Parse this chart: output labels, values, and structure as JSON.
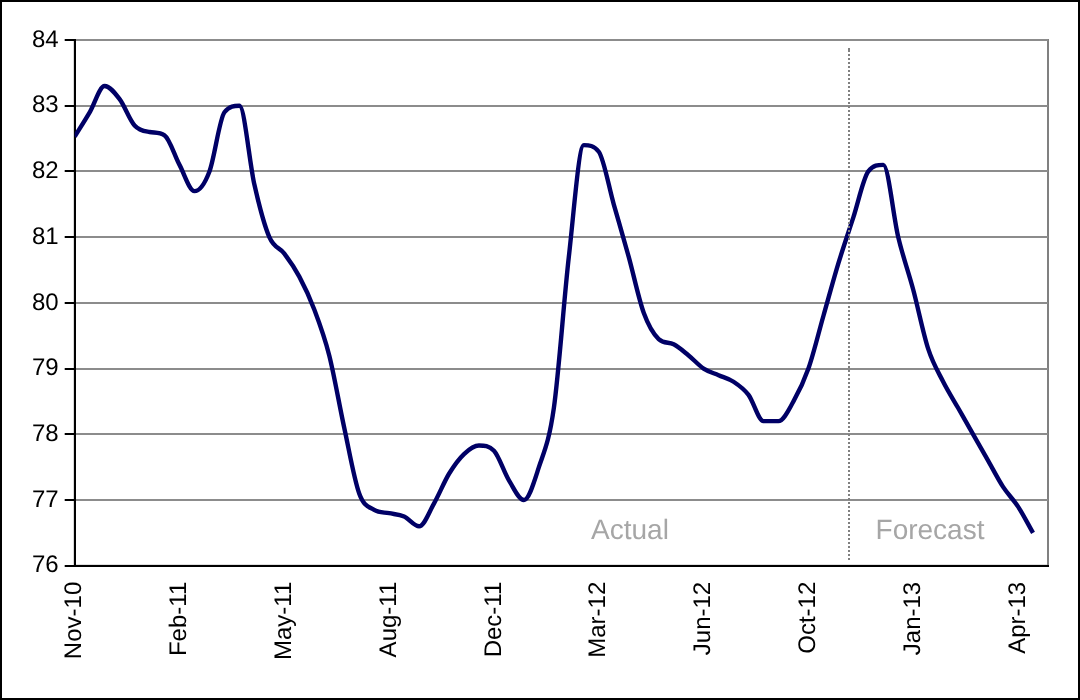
{
  "chart_data": {
    "type": "line",
    "categories": [
      "Nov-10",
      null,
      null,
      null,
      null,
      null,
      null,
      "Feb-11",
      null,
      null,
      null,
      null,
      null,
      null,
      "May-11",
      null,
      null,
      null,
      null,
      null,
      null,
      "Aug-11",
      null,
      null,
      null,
      null,
      null,
      null,
      "Dec-11",
      null,
      null,
      null,
      null,
      null,
      null,
      "Mar-12",
      null,
      null,
      null,
      null,
      null,
      null,
      "Jun-12",
      null,
      null,
      null,
      null,
      null,
      null,
      "Oct-12",
      null,
      null,
      null,
      null,
      null,
      null,
      "Jan-13",
      null,
      null,
      null,
      null,
      null,
      null,
      "Apr-13",
      null,
      null
    ],
    "series": [
      {
        "color": "#000066",
        "values": [
          82.53,
          82.9,
          83.3,
          83.1,
          82.7,
          82.6,
          82.55,
          82.1,
          81.7,
          82.0,
          82.9,
          83.0,
          81.8,
          81.0,
          80.75,
          80.4,
          79.9,
          79.2,
          78.1,
          77.1,
          76.85,
          76.8,
          76.75,
          76.6,
          76.95,
          77.4,
          77.7,
          77.83,
          77.75,
          77.3,
          77.0,
          77.5,
          78.4,
          80.7,
          82.4,
          82.3,
          81.5,
          80.7,
          79.85,
          79.45,
          79.37,
          79.2,
          79.0,
          78.9,
          78.8,
          78.6,
          78.2,
          78.2,
          78.5,
          79.0,
          79.8,
          80.6,
          81.3,
          82.0,
          82.1,
          81.0,
          80.2,
          79.3,
          78.8,
          78.4,
          78.0,
          77.6,
          77.2,
          76.9,
          76.5,
          null
        ]
      }
    ],
    "ylim": [
      76,
      84
    ],
    "yticks": [
      76,
      77,
      78,
      79,
      80,
      81,
      82,
      83,
      84
    ],
    "grid": "y",
    "legend": false,
    "marker": "none",
    "line_style": "solid",
    "annotations": [
      "Actual",
      "Forecast"
    ]
  }
}
